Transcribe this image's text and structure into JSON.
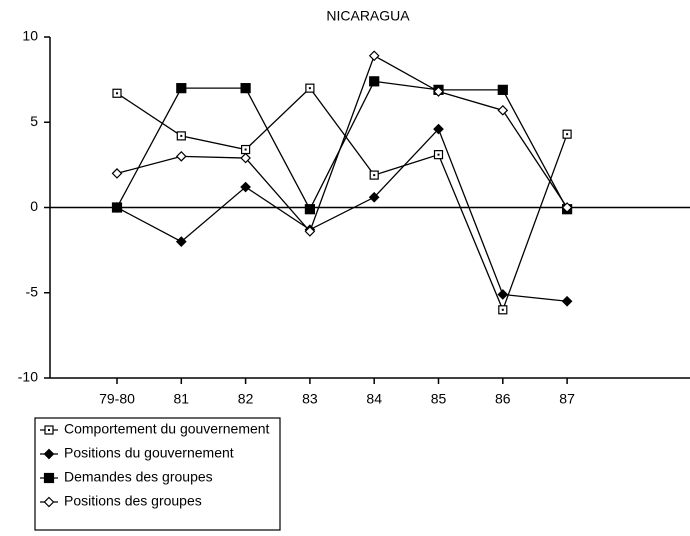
{
  "chart_data": {
    "type": "line",
    "title": "NICARAGUA",
    "categories": [
      "79-80",
      "81",
      "82",
      "83",
      "84",
      "85",
      "86",
      "87"
    ],
    "series": [
      {
        "name": "Comportement du gouvernement",
        "color": "#000000",
        "marker": "open-square",
        "values": [
          6.7,
          4.2,
          3.4,
          7.0,
          1.9,
          3.1,
          -6.0,
          4.3
        ]
      },
      {
        "name": "Positions du gouvernement",
        "color": "#000000",
        "marker": "filled-diamond",
        "values": [
          0,
          -2.0,
          1.2,
          -1.3,
          0.6,
          4.6,
          -5.1,
          -5.5
        ]
      },
      {
        "name": "Demandes des groupes",
        "color": "#000000",
        "marker": "filled-square",
        "values": [
          0,
          7.0,
          7.0,
          -0.1,
          7.4,
          6.9,
          6.9,
          -0.1
        ]
      },
      {
        "name": "Positions des groupes",
        "color": "#000000",
        "marker": "open-diamond",
        "values": [
          2.0,
          3.0,
          2.9,
          -1.4,
          8.9,
          6.8,
          5.7,
          0
        ]
      }
    ],
    "ylim": [
      -10,
      10
    ],
    "yticks": [
      10,
      5,
      0,
      -5,
      -10
    ],
    "legend": "bottom-left"
  }
}
